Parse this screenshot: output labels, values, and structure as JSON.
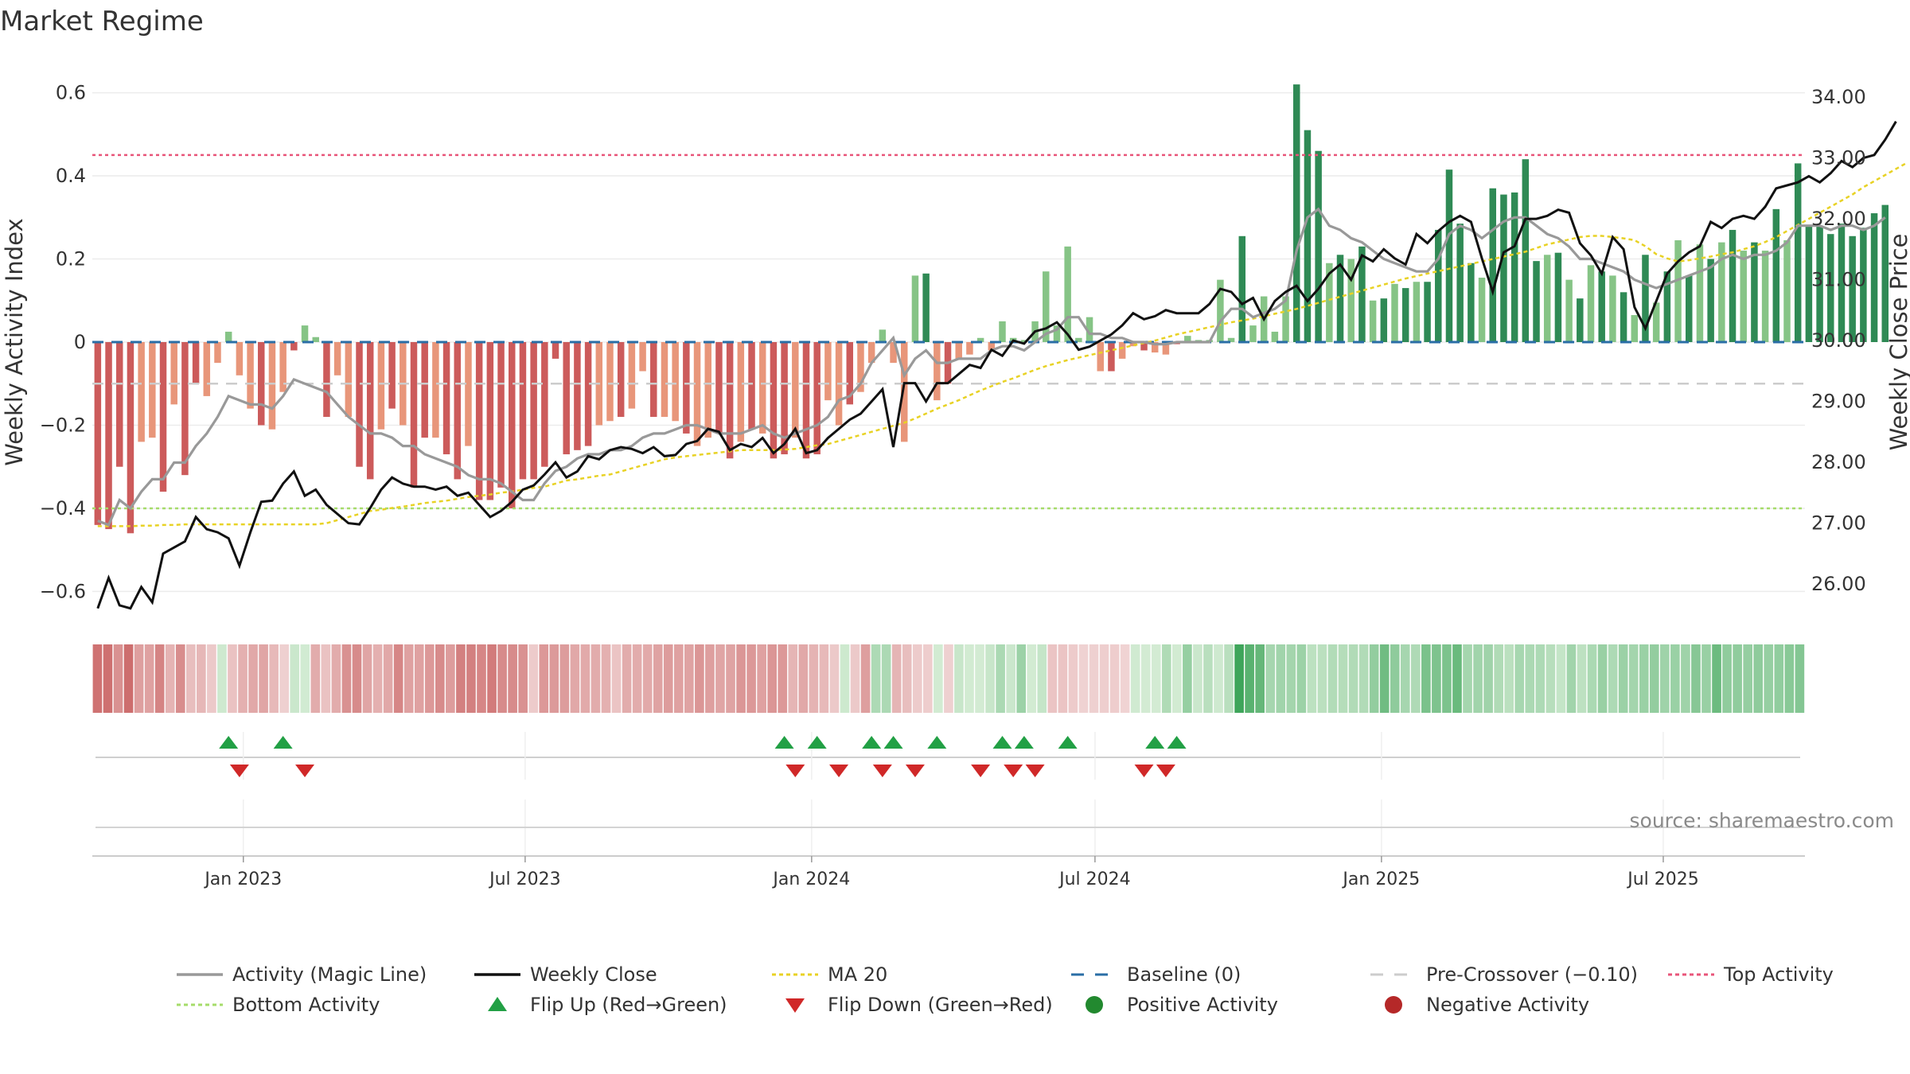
{
  "chart_data": {
    "type": "bar",
    "title": "Market Regime",
    "ylabel": "Weekly Activity Index",
    "y2label": "Weekly Close Price",
    "ylim": [
      -0.67,
      0.67
    ],
    "y2lim": [
      25.4,
      34.55
    ],
    "yticks": [
      -0.6,
      -0.4,
      -0.2,
      0,
      0.2,
      0.4,
      0.6
    ],
    "y2ticks": [
      "26.00",
      "27.00",
      "28.00",
      "29.00",
      "30.00",
      "31.00",
      "32.00",
      "33.00",
      "34.00"
    ],
    "x_start": "2022-09-26",
    "x_end": "2025-09-30",
    "x_step_days": 7,
    "x_ticks": [
      {
        "date": "2023-01-01",
        "label": "Jan 2023"
      },
      {
        "date": "2023-07-01",
        "label": "Jul 2023"
      },
      {
        "date": "2024-01-01",
        "label": "Jan 2024"
      },
      {
        "date": "2024-07-01",
        "label": "Jul 2024"
      },
      {
        "date": "2025-01-01",
        "label": "Jan 2025"
      },
      {
        "date": "2025-07-01",
        "label": "Jul 2025"
      }
    ],
    "activity_values": [
      -0.44,
      -0.45,
      -0.3,
      -0.46,
      -0.24,
      -0.23,
      -0.36,
      -0.15,
      -0.32,
      -0.1,
      -0.13,
      -0.05,
      0.025,
      -0.08,
      -0.16,
      -0.2,
      -0.21,
      -0.12,
      -0.02,
      0.04,
      0.012,
      -0.18,
      -0.08,
      -0.18,
      -0.3,
      -0.33,
      -0.21,
      -0.16,
      -0.2,
      -0.35,
      -0.23,
      -0.23,
      -0.27,
      -0.33,
      -0.25,
      -0.38,
      -0.38,
      -0.35,
      -0.4,
      -0.33,
      -0.33,
      -0.3,
      -0.04,
      -0.27,
      -0.26,
      -0.25,
      -0.2,
      -0.19,
      -0.18,
      -0.16,
      -0.07,
      -0.18,
      -0.18,
      -0.19,
      -0.22,
      -0.25,
      -0.23,
      -0.22,
      -0.28,
      -0.24,
      -0.21,
      -0.22,
      -0.28,
      -0.27,
      -0.23,
      -0.28,
      -0.27,
      -0.14,
      -0.2,
      -0.15,
      -0.12,
      -0.05,
      0.03,
      -0.05,
      -0.24,
      0.16,
      0.165,
      -0.14,
      -0.1,
      -0.04,
      -0.03,
      0.01,
      -0.02,
      0.05,
      0.01,
      0.005,
      0.05,
      0.17,
      0.04,
      0.23,
      0.01,
      0.06,
      -0.07,
      -0.07,
      -0.04,
      -0.01,
      -0.02,
      -0.025,
      -0.03,
      -0.005,
      0.015,
      0.005,
      0.005,
      0.15,
      0.01,
      0.255,
      0.04,
      0.11,
      0.025,
      0.11,
      0.62,
      0.51,
      0.46,
      0.19,
      0.21,
      0.2,
      0.23,
      0.1,
      0.105,
      0.14,
      0.13,
      0.145,
      0.145,
      0.27,
      0.415,
      0.285,
      0.19,
      0.155,
      0.37,
      0.355,
      0.36,
      0.44,
      0.195,
      0.21,
      0.215,
      0.15,
      0.105,
      0.185,
      0.17,
      0.16,
      0.12,
      0.065,
      0.21,
      0.095,
      0.17,
      0.245,
      0.16,
      0.235,
      0.2,
      0.24,
      0.27,
      0.22,
      0.24,
      0.22,
      0.32,
      0.245,
      0.43,
      0.28,
      0.28,
      0.26,
      0.285,
      0.255,
      0.275,
      0.31,
      0.33
    ],
    "magic_line": [
      -0.43,
      -0.44,
      -0.38,
      -0.4,
      -0.36,
      -0.33,
      -0.33,
      -0.29,
      -0.29,
      -0.25,
      -0.22,
      -0.18,
      -0.13,
      -0.14,
      -0.15,
      -0.15,
      -0.16,
      -0.13,
      -0.09,
      -0.1,
      -0.11,
      -0.12,
      -0.15,
      -0.18,
      -0.2,
      -0.22,
      -0.22,
      -0.23,
      -0.25,
      -0.25,
      -0.27,
      -0.28,
      -0.29,
      -0.3,
      -0.32,
      -0.33,
      -0.33,
      -0.34,
      -0.36,
      -0.38,
      -0.38,
      -0.34,
      -0.31,
      -0.3,
      -0.28,
      -0.27,
      -0.27,
      -0.26,
      -0.26,
      -0.25,
      -0.23,
      -0.22,
      -0.22,
      -0.21,
      -0.2,
      -0.2,
      -0.21,
      -0.22,
      -0.22,
      -0.22,
      -0.21,
      -0.2,
      -0.22,
      -0.23,
      -0.22,
      -0.21,
      -0.2,
      -0.18,
      -0.14,
      -0.13,
      -0.1,
      -0.05,
      -0.02,
      0.01,
      -0.08,
      -0.04,
      -0.02,
      -0.05,
      -0.05,
      -0.04,
      -0.04,
      -0.04,
      -0.02,
      -0.01,
      -0.01,
      -0.02,
      0.0,
      0.02,
      0.03,
      0.06,
      0.06,
      0.02,
      0.02,
      0.01,
      0.01,
      0.0,
      0.0,
      -0.005,
      -0.005,
      0.0,
      0.0,
      0.0,
      0.0,
      0.05,
      0.08,
      0.08,
      0.06,
      0.07,
      0.08,
      0.1,
      0.22,
      0.3,
      0.32,
      0.28,
      0.27,
      0.25,
      0.24,
      0.22,
      0.2,
      0.19,
      0.18,
      0.17,
      0.17,
      0.2,
      0.26,
      0.28,
      0.27,
      0.25,
      0.27,
      0.29,
      0.3,
      0.3,
      0.28,
      0.26,
      0.25,
      0.23,
      0.2,
      0.2,
      0.19,
      0.18,
      0.17,
      0.15,
      0.14,
      0.13,
      0.14,
      0.15,
      0.16,
      0.17,
      0.18,
      0.2,
      0.21,
      0.2,
      0.21,
      0.21,
      0.22,
      0.24,
      0.28,
      0.28,
      0.28,
      0.27,
      0.28,
      0.28,
      0.27,
      0.28,
      0.3
    ],
    "weekly_close": [
      25.6,
      26.1,
      25.65,
      25.6,
      25.95,
      25.7,
      26.5,
      26.6,
      26.7,
      27.1,
      26.9,
      26.85,
      26.75,
      26.3,
      26.85,
      27.35,
      27.37,
      27.65,
      27.85,
      27.45,
      27.55,
      27.3,
      27.15,
      27.0,
      26.98,
      27.25,
      27.55,
      27.75,
      27.65,
      27.6,
      27.6,
      27.55,
      27.6,
      27.45,
      27.5,
      27.3,
      27.1,
      27.2,
      27.35,
      27.55,
      27.62,
      27.8,
      28.0,
      27.75,
      27.85,
      28.1,
      28.05,
      28.2,
      28.25,
      28.22,
      28.15,
      28.25,
      28.1,
      28.12,
      28.3,
      28.35,
      28.55,
      28.5,
      28.2,
      28.3,
      28.25,
      28.4,
      28.15,
      28.3,
      28.55,
      28.15,
      28.2,
      28.4,
      28.55,
      28.7,
      28.8,
      29.0,
      29.2,
      28.25,
      29.3,
      29.3,
      29.0,
      29.3,
      29.3,
      29.45,
      29.6,
      29.55,
      29.85,
      29.75,
      30.0,
      29.95,
      30.15,
      30.2,
      30.3,
      30.1,
      29.85,
      29.9,
      30.0,
      30.1,
      30.25,
      30.45,
      30.35,
      30.4,
      30.5,
      30.45,
      30.45,
      30.45,
      30.6,
      30.85,
      30.8,
      30.6,
      30.7,
      30.35,
      30.65,
      30.8,
      30.9,
      30.65,
      30.85,
      31.1,
      31.25,
      31.0,
      31.4,
      31.3,
      31.5,
      31.35,
      31.25,
      31.75,
      31.6,
      31.8,
      31.95,
      32.05,
      31.95,
      31.35,
      30.8,
      31.45,
      31.55,
      32.0,
      32.0,
      32.05,
      32.15,
      32.1,
      31.6,
      31.4,
      31.1,
      31.7,
      31.5,
      30.55,
      30.2,
      30.65,
      31.1,
      31.3,
      31.45,
      31.55,
      31.95,
      31.85,
      32.0,
      32.05,
      32.0,
      32.2,
      32.5,
      32.55,
      32.6,
      32.7,
      32.6,
      32.75,
      32.95,
      32.85,
      33.0,
      33.05,
      33.3,
      33.6
    ],
    "ma20": [
      26.95,
      26.95,
      26.95,
      26.95,
      26.96,
      26.96,
      26.97,
      26.97,
      26.98,
      26.98,
      26.98,
      26.98,
      26.98,
      26.98,
      26.98,
      26.98,
      26.98,
      26.98,
      26.98,
      26.98,
      26.98,
      27.0,
      27.05,
      27.1,
      27.15,
      27.2,
      27.22,
      27.25,
      27.27,
      27.3,
      27.33,
      27.35,
      27.37,
      27.4,
      27.43,
      27.45,
      27.47,
      27.5,
      27.52,
      27.55,
      27.58,
      27.6,
      27.65,
      27.7,
      27.72,
      27.75,
      27.78,
      27.8,
      27.85,
      27.9,
      27.95,
      28.0,
      28.05,
      28.08,
      28.1,
      28.12,
      28.14,
      28.16,
      28.18,
      28.2,
      28.2,
      28.2,
      28.2,
      28.21,
      28.22,
      28.25,
      28.28,
      28.3,
      28.35,
      28.4,
      28.45,
      28.5,
      28.55,
      28.6,
      28.65,
      28.72,
      28.8,
      28.88,
      28.95,
      29.02,
      29.1,
      29.18,
      29.25,
      29.32,
      29.38,
      29.45,
      29.52,
      29.58,
      29.63,
      29.68,
      29.72,
      29.76,
      29.8,
      29.84,
      29.88,
      29.92,
      29.96,
      30.0,
      30.05,
      30.1,
      30.14,
      30.18,
      30.22,
      30.26,
      30.3,
      30.33,
      30.36,
      30.4,
      30.44,
      30.48,
      30.52,
      30.57,
      30.62,
      30.67,
      30.72,
      30.77,
      30.82,
      30.87,
      30.92,
      30.97,
      31.02,
      31.06,
      31.1,
      31.14,
      31.18,
      31.22,
      31.26,
      31.3,
      31.34,
      31.38,
      31.42,
      31.46,
      31.52,
      31.58,
      31.62,
      31.66,
      31.7,
      31.72,
      31.72,
      31.7,
      31.68,
      31.65,
      31.55,
      31.42,
      31.35,
      31.3,
      31.32,
      31.35,
      31.38,
      31.42,
      31.45,
      31.5,
      31.55,
      31.62,
      31.7,
      31.8,
      31.9,
      32.0,
      32.1,
      32.2,
      32.3,
      32.4,
      32.52,
      32.62,
      32.72,
      32.82,
      32.92
    ],
    "baseline": 0,
    "pre_crossover": -0.1,
    "top_activity": 0.45,
    "bottom_activity": -0.4,
    "flip_up_weeks": [
      12,
      17,
      63,
      66,
      71,
      73,
      77,
      83,
      85,
      89,
      97,
      99
    ],
    "flip_down_weeks": [
      13,
      19,
      64,
      68,
      72,
      75,
      81,
      84,
      86,
      96,
      98
    ],
    "legend": [
      {
        "label": "Activity (Magic Line)",
        "kind": "line",
        "color": "#999999"
      },
      {
        "label": "Weekly Close",
        "kind": "line",
        "color": "#111111"
      },
      {
        "label": "MA 20",
        "kind": "dotted",
        "color": "#e8d225"
      },
      {
        "label": "Baseline (0)",
        "kind": "dashed",
        "color": "#2a6ea6"
      },
      {
        "label": "Pre-Crossover (−0.10)",
        "kind": "dashed",
        "color": "#cccccc"
      },
      {
        "label": "Top Activity",
        "kind": "dotted",
        "color": "#e8557a"
      },
      {
        "label": "Bottom Activity",
        "kind": "dotted",
        "color": "#a6dc6a"
      },
      {
        "label": "Flip Up (Red→Green)",
        "kind": "tri-up",
        "color": "#22a045"
      },
      {
        "label": "Flip Down (Green→Red)",
        "kind": "tri-down",
        "color": "#d02828"
      },
      {
        "label": "Positive Activity",
        "kind": "dot",
        "color": "#22892f"
      },
      {
        "label": "Negative Activity",
        "kind": "dot",
        "color": "#b52828"
      }
    ],
    "colors": {
      "neg_strong": "#cc5b5b",
      "neg_soft": "#e8967a",
      "pos_strong": "#2f8a55",
      "pos_soft": "#86c486",
      "magic": "#999999",
      "close": "#111111",
      "ma": "#e8d225",
      "baseline": "#2a6ea6",
      "pre": "#cccccc",
      "top": "#e8557a",
      "bottom": "#a6dc6a"
    },
    "source": "source: sharemaestro.com"
  }
}
